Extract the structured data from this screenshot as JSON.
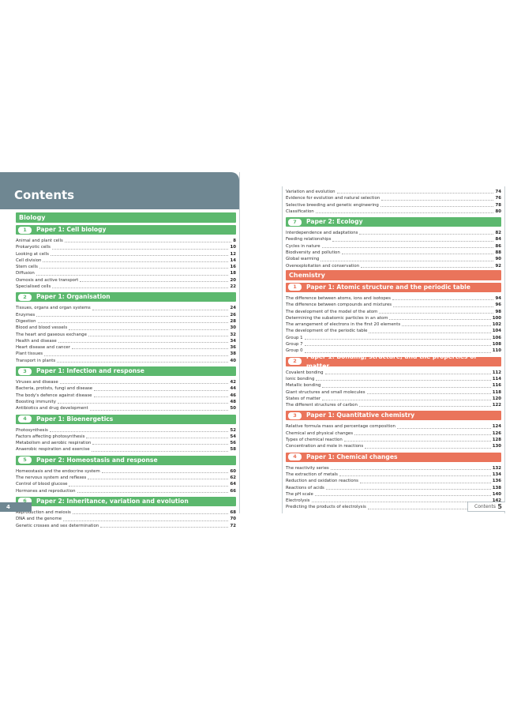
{
  "pages": [
    {
      "heading": "Contents",
      "page_number": "4",
      "groups": [
        {
          "subject": "Biology",
          "color": "#5cb86e",
          "sections": [
            {
              "number": "1",
              "title": "Paper 1: Cell biology",
              "entries": [
                {
                  "title": "Animal and plant cells",
                  "page": 8
                },
                {
                  "title": "Prokaryotic cells",
                  "page": 10
                },
                {
                  "title": "Looking at cells",
                  "page": 12
                },
                {
                  "title": "Cell division",
                  "page": 14
                },
                {
                  "title": "Stem cells",
                  "page": 16
                },
                {
                  "title": "Diffusion",
                  "page": 18
                },
                {
                  "title": "Osmosis and active transport",
                  "page": 20
                },
                {
                  "title": "Specialised cells",
                  "page": 22
                }
              ]
            },
            {
              "number": "2",
              "title": "Paper 1: Organisation",
              "entries": [
                {
                  "title": "Tissues, organs and organ systems",
                  "page": 24
                },
                {
                  "title": "Enzymes",
                  "page": 26
                },
                {
                  "title": "Digestion",
                  "page": 28
                },
                {
                  "title": "Blood and blood vessels",
                  "page": 30
                },
                {
                  "title": "The heart and gaseous exchange",
                  "page": 32
                },
                {
                  "title": "Health and disease",
                  "page": 34
                },
                {
                  "title": "Heart disease and cancer",
                  "page": 36
                },
                {
                  "title": "Plant tissues",
                  "page": 38
                },
                {
                  "title": "Transport in plants",
                  "page": 40
                }
              ]
            },
            {
              "number": "3",
              "title": "Paper 1: Infection and response",
              "entries": [
                {
                  "title": "Viruses and disease",
                  "page": 42
                },
                {
                  "title": "Bacteria, protists, fungi and disease",
                  "page": 44
                },
                {
                  "title": "The body's defence against disease",
                  "page": 46
                },
                {
                  "title": "Boosting immunity",
                  "page": 48
                },
                {
                  "title": "Antibiotics and drug development",
                  "page": 50
                }
              ]
            },
            {
              "number": "4",
              "title": "Paper 1: Bioenergetics",
              "entries": [
                {
                  "title": "Photosynthesis",
                  "page": 52
                },
                {
                  "title": "Factors affecting photosynthesis",
                  "page": 54
                },
                {
                  "title": "Metabolism and aerobic respiration",
                  "page": 56
                },
                {
                  "title": "Anaerobic respiration and exercise",
                  "page": 58
                }
              ]
            },
            {
              "number": "5",
              "title": "Paper 2: Homeostasis and response",
              "entries": [
                {
                  "title": "Homeostasis and the endocrine system",
                  "page": 60
                },
                {
                  "title": "The nervous system and reflexes",
                  "page": 62
                },
                {
                  "title": "Control of blood glucose",
                  "page": 64
                },
                {
                  "title": "Hormones and reproduction",
                  "page": 66
                }
              ]
            },
            {
              "number": "6",
              "title": "Paper 2: Inheritance, variation and evolution",
              "entries": [
                {
                  "title": "Reproduction and meiosis",
                  "page": 68
                },
                {
                  "title": "DNA and the genome",
                  "page": 70
                },
                {
                  "title": "Genetic crosses and sex determination",
                  "page": 72
                }
              ]
            }
          ]
        }
      ]
    },
    {
      "footer": "Contents",
      "page_number": "5",
      "groups": [
        {
          "color": "#5cb86e",
          "sections": [
            {
              "entries": [
                {
                  "title": "Variation and evolution",
                  "page": 74
                },
                {
                  "title": "Evidence for evolution and natural selection",
                  "page": 76
                },
                {
                  "title": "Selective breeding and genetic engineering",
                  "page": 78
                },
                {
                  "title": "Classification",
                  "page": 80
                }
              ]
            },
            {
              "number": "7",
              "title": "Paper 2: Ecology",
              "entries": [
                {
                  "title": "Interdependence and adaptations",
                  "page": 82
                },
                {
                  "title": "Feeding relationships",
                  "page": 84
                },
                {
                  "title": "Cycles in nature",
                  "page": 86
                },
                {
                  "title": "Biodiversity and pollution",
                  "page": 88
                },
                {
                  "title": "Global warming",
                  "page": 90
                },
                {
                  "title": "Overexploitation and conservation",
                  "page": 92
                }
              ]
            }
          ]
        },
        {
          "subject": "Chemistry",
          "color": "#ea745b",
          "sections": [
            {
              "number": "1",
              "title": "Paper 1: Atomic structure and the periodic table",
              "entries": [
                {
                  "title": "The difference between atoms, ions and isotopes",
                  "page": 94
                },
                {
                  "title": "The difference between compounds and mixtures",
                  "page": 96
                },
                {
                  "title": "The development of the model of the atom",
                  "page": 98
                },
                {
                  "title": "Determining the subatomic particles in an atom",
                  "page": 100
                },
                {
                  "title": "The arrangement of electrons in the first 20 elements",
                  "page": 102
                },
                {
                  "title": "The development of the periodic table",
                  "page": 104
                },
                {
                  "title": "Group 1",
                  "page": 106
                },
                {
                  "title": "Group 7",
                  "page": 108
                },
                {
                  "title": "Group 0",
                  "page": 110
                }
              ]
            },
            {
              "number": "2",
              "title": "Paper 1: Bonding, structure, and the properties of matter",
              "entries": [
                {
                  "title": "Covalent bonding",
                  "page": 112
                },
                {
                  "title": "Ionic bonding",
                  "page": 114
                },
                {
                  "title": "Metallic bonding",
                  "page": 116
                },
                {
                  "title": "Giant structures and small molecules",
                  "page": 118
                },
                {
                  "title": "States of matter",
                  "page": 120
                },
                {
                  "title": "The different structures of carbon",
                  "page": 122
                }
              ]
            },
            {
              "number": "3",
              "title": "Paper 1: Quantitative chemistry",
              "entries": [
                {
                  "title": "Relative formula mass and percentage composition",
                  "page": 124
                },
                {
                  "title": "Chemical and physical changes",
                  "page": 126
                },
                {
                  "title": "Types of chemical reaction",
                  "page": 128
                },
                {
                  "title": "Concentration and mole in reactions",
                  "page": 130
                }
              ]
            },
            {
              "number": "4",
              "title": "Paper 1: Chemical changes",
              "entries": [
                {
                  "title": "The reactivity series",
                  "page": 132
                },
                {
                  "title": "The extraction of metals",
                  "page": 134
                },
                {
                  "title": "Reduction and oxidation reactions",
                  "page": 136
                },
                {
                  "title": "Reactions of acids",
                  "page": 138
                },
                {
                  "title": "The pH scale",
                  "page": 140
                },
                {
                  "title": "Electrolysis",
                  "page": 142
                },
                {
                  "title": "Predicting the products of electrolysis",
                  "page": 144
                }
              ]
            }
          ]
        }
      ]
    }
  ]
}
